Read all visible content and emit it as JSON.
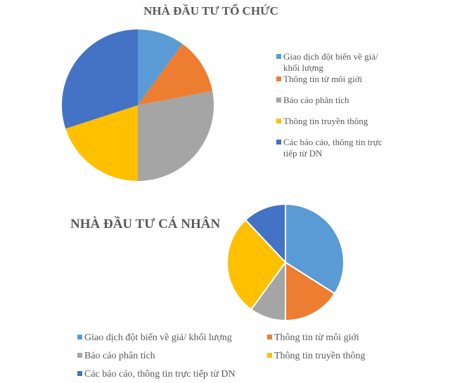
{
  "chart_data": [
    {
      "type": "pie",
      "title": "NHÀ ĐẦU TƯ TỔ CHỨC",
      "categories": [
        "Giao dịch đột biến về giá/ khối lượng",
        "Thông tin từ môi giới",
        "Báo cáo phân tích",
        "Thông tin truyền thông",
        "Các báo cáo, thông tin trực tiếp từ DN"
      ],
      "values": [
        10,
        12,
        28,
        20,
        30
      ],
      "colors": [
        "#5B9BD5",
        "#ED7D31",
        "#A5A5A5",
        "#FFC000",
        "#4472C4"
      ],
      "legend_position": "right"
    },
    {
      "type": "pie",
      "title": "NHÀ ĐẦU TƯ CÁ NHÂN",
      "categories": [
        "Giao dịch đột biến về giá/ khối lượng",
        "Thông tin từ môi giới",
        "Báo cáo phân tích",
        "Thông tin truyền thông",
        "Các báo cáo, thông tin trực tiếp từ DN"
      ],
      "values": [
        34,
        16,
        10,
        28,
        12
      ],
      "colors": [
        "#5B9BD5",
        "#ED7D31",
        "#A5A5A5",
        "#FFC000",
        "#4472C4"
      ],
      "legend_position": "bottom"
    }
  ]
}
